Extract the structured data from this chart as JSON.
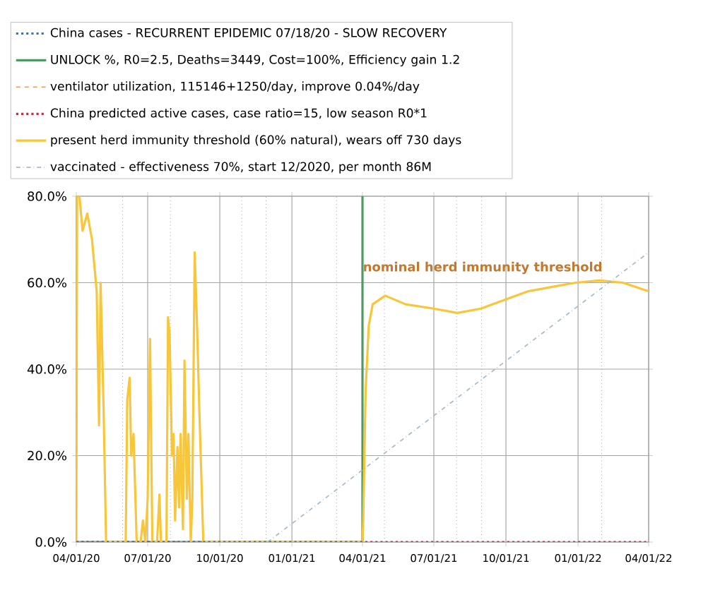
{
  "chart_data": {
    "type": "line",
    "series": [
      {
        "name": "China cases - RECURRENT EPIDEMIC 07/18/20 - SLOW RECOVERY",
        "color": "#4a6fa5",
        "line_style": "dotted",
        "x": [
          "2020-04-01",
          "2021-04-01"
        ],
        "values": [
          0,
          0
        ]
      },
      {
        "name": "UNLOCK %, R0=2.5,  Deaths=3449, Cost=100%, Efficiency gain 1.2",
        "color": "#4f9a62",
        "line_style": "solid",
        "x": [
          "2020-04-01",
          "2021-04-01",
          "2021-04-01"
        ],
        "values": [
          0,
          0,
          80
        ]
      },
      {
        "name": "ventilator utilization, 115146+1250/day, improve 0.04%/day",
        "color": "#f0a050",
        "line_style": "dashed",
        "x": [
          "2020-04-01",
          "2022-04-01"
        ],
        "values": [
          0,
          0
        ]
      },
      {
        "name": "China predicted active cases, case ratio=15, low season R0*1",
        "color": "#c0304a",
        "line_style": "dotted",
        "x": [
          "2020-04-01",
          "2022-04-01"
        ],
        "values": [
          0,
          0
        ]
      },
      {
        "name": "present herd immunity threshold (60% natural), wears off 730 days",
        "color": "#f7c63a",
        "line_style": "solid",
        "x": [
          "2020-04-01",
          "2020-04-02",
          "2020-04-05",
          "2020-04-09",
          "2020-04-15",
          "2020-04-21",
          "2020-04-27",
          "2020-04-30",
          "2020-05-02",
          "2020-05-06",
          "2020-05-09",
          "2020-06-03",
          "2020-06-05",
          "2020-06-08",
          "2020-06-10",
          "2020-06-13",
          "2020-06-17",
          "2020-06-22",
          "2020-06-25",
          "2020-06-28",
          "2020-07-01",
          "2020-07-04",
          "2020-07-07",
          "2020-07-13",
          "2020-07-16",
          "2020-07-18",
          "2020-07-25",
          "2020-07-27",
          "2020-07-29",
          "2020-08-01",
          "2020-08-03",
          "2020-08-05",
          "2020-08-08",
          "2020-08-10",
          "2020-08-12",
          "2020-08-15",
          "2020-08-17",
          "2020-08-20",
          "2020-08-22",
          "2020-08-25",
          "2020-08-27",
          "2020-08-30",
          "2020-09-02",
          "2020-09-05",
          "2020-09-10",
          "2021-04-01",
          "2021-04-02",
          "2021-04-05",
          "2021-04-09",
          "2021-04-14",
          "2021-04-30",
          "2021-05-26",
          "2021-07-01",
          "2021-07-31",
          "2021-08-30",
          "2021-09-29",
          "2021-10-29",
          "2021-11-28",
          "2021-12-29",
          "2022-01-28",
          "2022-02-27",
          "2022-04-01"
        ],
        "values": [
          0,
          80,
          80,
          72,
          76,
          70,
          58,
          27,
          60,
          29,
          0,
          0,
          33,
          38,
          20,
          25,
          0,
          0,
          5,
          0,
          10,
          47,
          0,
          0,
          11,
          0,
          0,
          52,
          48,
          20,
          25,
          5,
          22,
          8,
          25,
          3,
          42,
          10,
          25,
          0,
          10,
          67,
          50,
          30,
          0,
          0,
          5,
          35,
          50,
          55,
          57,
          55,
          54,
          53,
          54,
          56,
          58,
          59,
          60,
          60.5,
          60,
          58
        ]
      },
      {
        "name": "vaccinated - effectiveness 70%, start 12/2020, per month 86M",
        "color": "#a9bccb",
        "line_style": "dashdot",
        "x": [
          "2020-12-01",
          "2022-04-01"
        ],
        "values": [
          0,
          67
        ]
      }
    ],
    "xlim": [
      "2020-04-01",
      "2022-04-01"
    ],
    "xticks": [
      {
        "value": "2020-04-01",
        "label": "04/01/20"
      },
      {
        "value": "2020-07-01",
        "label": "07/01/20"
      },
      {
        "value": "2020-10-01",
        "label": "10/01/20"
      },
      {
        "value": "2021-01-01",
        "label": "01/01/21"
      },
      {
        "value": "2021-04-01",
        "label": "04/01/21"
      },
      {
        "value": "2021-07-01",
        "label": "07/01/21"
      },
      {
        "value": "2021-10-01",
        "label": "10/01/21"
      },
      {
        "value": "2022-01-01",
        "label": "01/01/22"
      },
      {
        "value": "2022-04-01",
        "label": "04/01/22"
      }
    ],
    "ylim": [
      0,
      80
    ],
    "yticks": [
      {
        "value": 0,
        "label": "0.0%"
      },
      {
        "value": 20,
        "label": "20.0%"
      },
      {
        "value": 40,
        "label": "40.0%"
      },
      {
        "value": 60,
        "label": "60.0%"
      },
      {
        "value": 80,
        "label": "80.0%"
      }
    ],
    "ref_lines": [
      {
        "axis": "x",
        "value": "2020-05-30",
        "color": "#a0a0a0",
        "line_style": "dotted"
      },
      {
        "axis": "x",
        "value": "2020-07-30",
        "color": "#a0a0a0",
        "line_style": "dotted"
      },
      {
        "axis": "x",
        "value": "2020-10-29",
        "color": "#a0a0a0",
        "line_style": "dotted"
      },
      {
        "axis": "x",
        "value": "2020-11-29",
        "color": "#a0a0a0",
        "line_style": "dotted"
      },
      {
        "axis": "x",
        "value": "2021-02-27",
        "color": "#a0a0a0",
        "line_style": "dotted"
      },
      {
        "axis": "x",
        "value": "2021-04-29",
        "color": "#a0a0a0",
        "line_style": "dotted"
      },
      {
        "axis": "x",
        "value": "2021-07-30",
        "color": "#a0a0a0",
        "line_style": "dotted"
      },
      {
        "axis": "x",
        "value": "2021-08-31",
        "color": "#a0a0a0",
        "line_style": "dotted"
      },
      {
        "axis": "x",
        "value": "2022-01-31",
        "color": "#a0a0a0",
        "line_style": "dotted"
      }
    ],
    "annotations": [
      "nominal herd immunity threshold"
    ],
    "grid": true,
    "legend": "top"
  }
}
